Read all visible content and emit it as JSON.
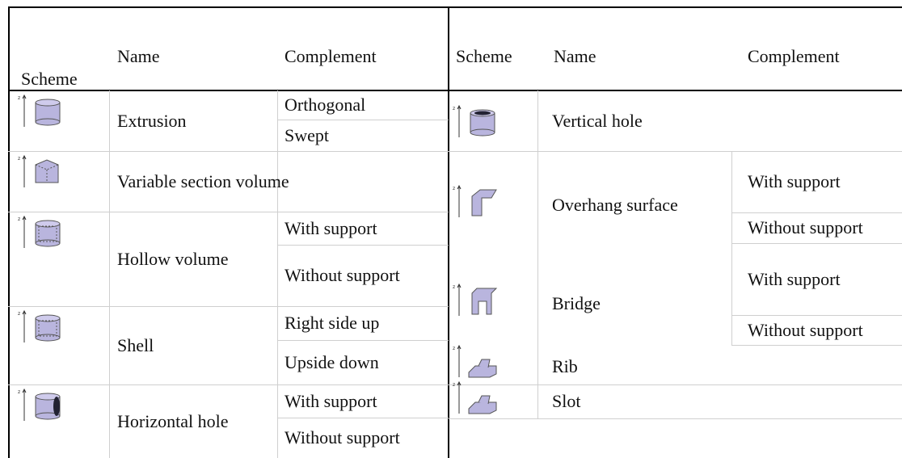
{
  "icon_axis_label": "z",
  "left_table": {
    "headers": [
      "Scheme",
      "Name",
      "Complement"
    ],
    "rows": [
      {
        "name": "Extrusion",
        "complements": [
          "Orthogonal",
          "Swept"
        ]
      },
      {
        "name": "Variable section volume",
        "complements": []
      },
      {
        "name": "Hollow volume",
        "complements": [
          "With support",
          "Without support"
        ]
      },
      {
        "name": "Shell",
        "complements": [
          "Right side up",
          "Upside down"
        ]
      },
      {
        "name": "Horizontal hole",
        "complements": [
          "With support",
          "Without support"
        ]
      }
    ]
  },
  "right_table": {
    "headers": [
      "Scheme",
      "Name",
      "Complement"
    ],
    "rows": [
      {
        "name": "Vertical hole",
        "complements": []
      },
      {
        "name": "Overhang surface",
        "complements": [
          "With support",
          "Without support"
        ]
      },
      {
        "name": "Bridge",
        "complements": [
          "With support",
          "Without support"
        ]
      },
      {
        "name": "Rib",
        "complements": []
      },
      {
        "name": "Slot",
        "complements": []
      }
    ]
  }
}
